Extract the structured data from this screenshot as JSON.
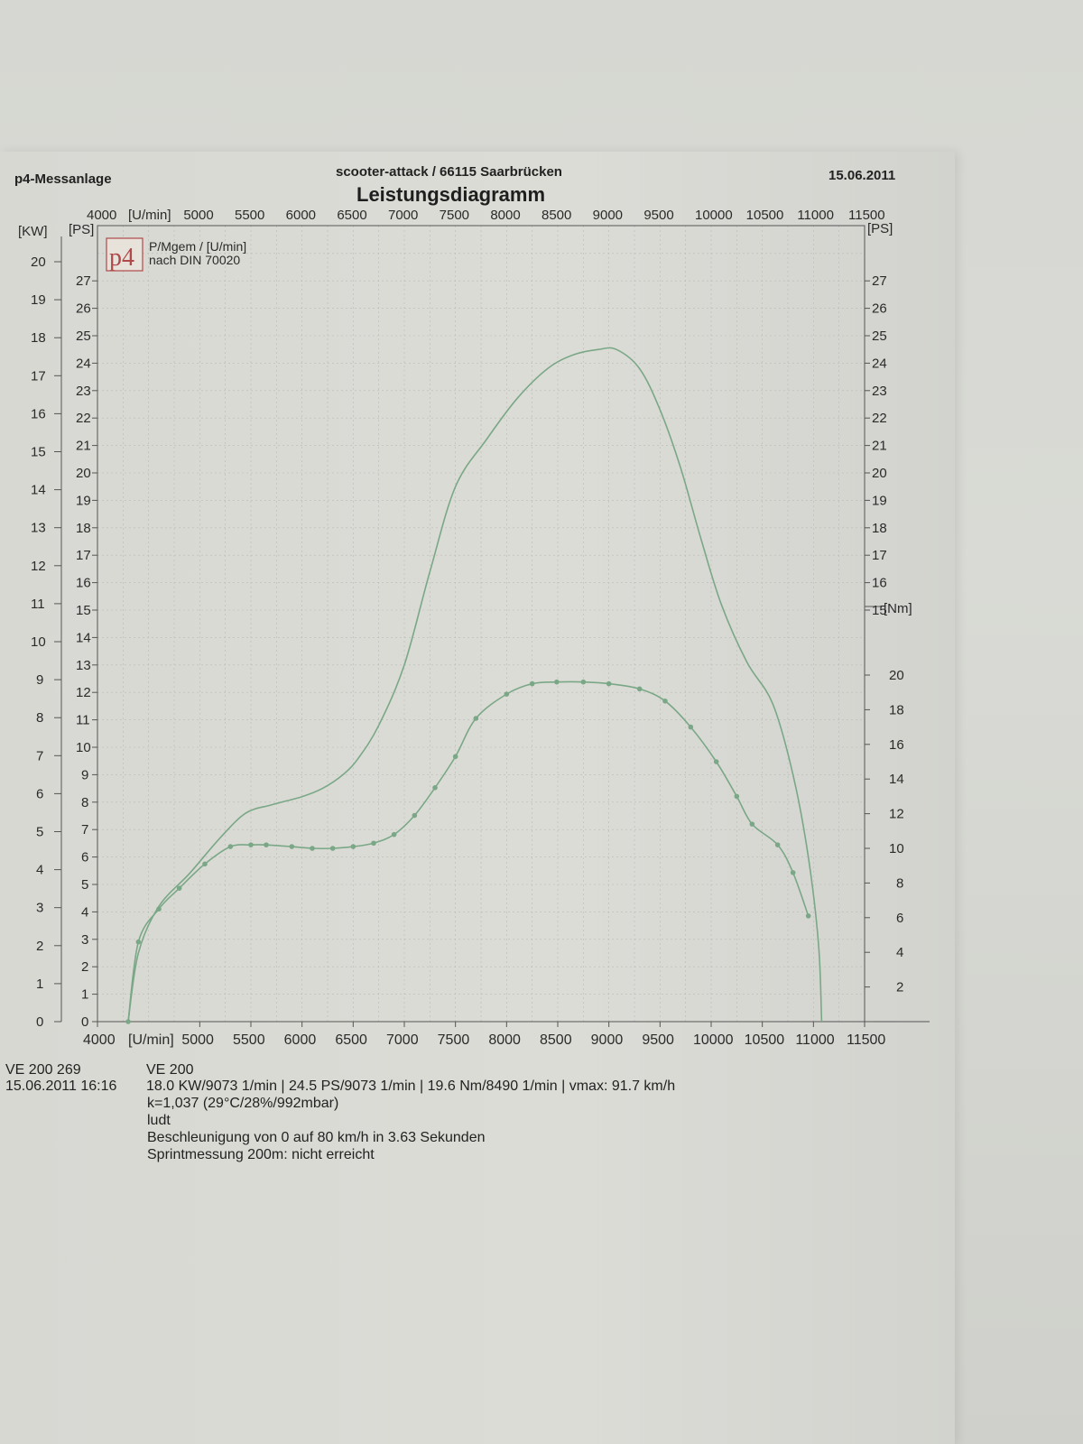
{
  "header": {
    "left": "p4-Messanlage",
    "center": "scooter-attack  / 66115 Saarbrücken",
    "right": "15.06.2011",
    "title": "Leistungsdiagramm"
  },
  "legend": {
    "logo_text": "p4",
    "line1": "P/Mgem / [U/min]",
    "line2": "nach DIN 70020"
  },
  "axes": {
    "x_unit": "[U/min]",
    "kw_unit": "[KW]",
    "ps_unit_left": "[PS]",
    "ps_unit_right": "[PS]",
    "nm_unit": "[Nm]"
  },
  "colors": {
    "curve": "#7aa887",
    "grid": "#b9bab5",
    "axis": "#555555"
  },
  "chart_data": {
    "type": "line",
    "title": "Leistungsdiagramm",
    "xlabel": "[U/min]",
    "xlim": [
      4000,
      11500
    ],
    "x_ticks": [
      4000,
      5000,
      5500,
      6000,
      6500,
      7000,
      7500,
      8000,
      8500,
      9000,
      9500,
      10000,
      10500,
      11000,
      11500
    ],
    "kw_ticks": [
      0,
      1,
      2,
      3,
      4,
      5,
      6,
      7,
      8,
      9,
      10,
      11,
      12,
      13,
      14,
      15,
      16,
      17,
      18,
      19,
      20
    ],
    "ps_left_ticks": [
      0,
      1,
      2,
      3,
      4,
      5,
      6,
      7,
      8,
      9,
      10,
      11,
      12,
      13,
      14,
      15,
      16,
      17,
      18,
      19,
      20,
      21,
      22,
      23,
      24,
      25,
      26,
      27
    ],
    "ps_right_ticks": [
      15,
      16,
      17,
      18,
      19,
      20,
      21,
      22,
      23,
      24,
      25,
      26,
      27
    ],
    "nm_ticks": [
      2,
      4,
      6,
      8,
      10,
      12,
      14,
      16,
      18,
      20
    ],
    "ylim_ps": [
      0,
      28
    ],
    "ylim_nm": [
      0,
      24
    ],
    "series": [
      {
        "axis": "PS",
        "x": [
          4300,
          4400,
          4600,
          4900,
          5200,
          5450,
          5700,
          6000,
          6200,
          6400,
          6550,
          6750,
          7000,
          7250,
          7500,
          7800,
          8100,
          8400,
          8650,
          8900,
          9073,
          9300,
          9500,
          9700,
          9900,
          10100,
          10350,
          10600,
          10800,
          10950,
          11050,
          11080
        ],
        "values": [
          0,
          2.5,
          4.2,
          5.4,
          6.7,
          7.6,
          7.9,
          8.2,
          8.5,
          9.0,
          9.6,
          10.8,
          13.0,
          16.4,
          19.5,
          21.2,
          22.7,
          23.8,
          24.3,
          24.5,
          24.5,
          23.8,
          22.3,
          20.2,
          17.6,
          15.2,
          13.1,
          11.6,
          9.0,
          6.0,
          2.8,
          0
        ]
      },
      {
        "axis": "Nm",
        "x": [
          4300,
          4400,
          4600,
          4800,
          5050,
          5300,
          5500,
          5650,
          5900,
          6100,
          6300,
          6500,
          6700,
          6900,
          7100,
          7300,
          7500,
          7700,
          8000,
          8250,
          8490,
          8750,
          9000,
          9300,
          9550,
          9800,
          10050,
          10250,
          10400,
          10650,
          10800,
          10950
        ],
        "values": [
          0,
          4.6,
          6.5,
          7.7,
          9.1,
          10.1,
          10.2,
          10.2,
          10.1,
          10.0,
          10.0,
          10.1,
          10.3,
          10.8,
          11.9,
          13.5,
          15.3,
          17.5,
          18.9,
          19.5,
          19.6,
          19.6,
          19.5,
          19.2,
          18.5,
          17.0,
          15.0,
          13.0,
          11.4,
          10.2,
          8.6,
          6.1
        ]
      }
    ]
  },
  "footer": {
    "id_left": "VE 200 269",
    "model": "VE 200",
    "date_time": "15.06.2011  16:16",
    "summary": "18.0 KW/9073 1/min  |  24.5 PS/9073 1/min  |  19.6 Nm/8490 1/min | vmax: 91.7 km/h",
    "k_factor": "k=1,037 (29°C/28%/992mbar)",
    "operator": "ludt",
    "accel": "Beschleunigung von 0 auf 80 km/h in 3.63 Sekunden",
    "sprint": "Sprintmessung 200m: nicht erreicht"
  }
}
